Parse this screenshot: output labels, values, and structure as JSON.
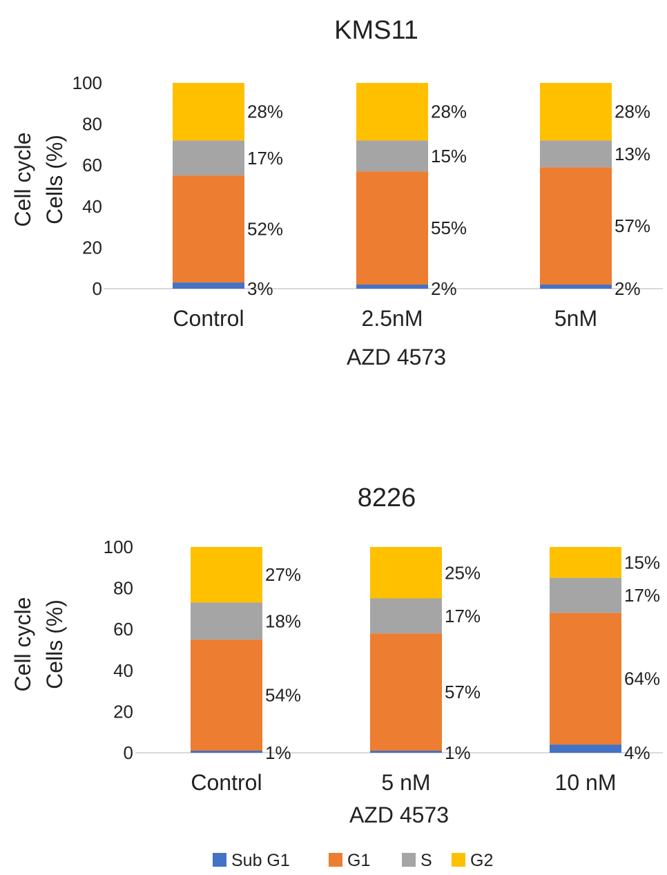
{
  "chart_data": [
    {
      "type": "bar",
      "stacked": true,
      "title": "KMS11",
      "ylabel": [
        "Cell cycle",
        "Cells (%)"
      ],
      "xlabel": "AZD 4573",
      "ylim": [
        0,
        100
      ],
      "yticks": [
        0,
        20,
        40,
        60,
        80,
        100
      ],
      "categories": [
        "Control",
        "2.5nM",
        "5nM"
      ],
      "series": [
        {
          "name": "Sub G1",
          "values": [
            3,
            2,
            2
          ],
          "labels": [
            "3%",
            "2%",
            "2%"
          ]
        },
        {
          "name": "G1",
          "values": [
            52,
            55,
            57
          ],
          "labels": [
            "52%",
            "55%",
            "57%"
          ]
        },
        {
          "name": "S",
          "values": [
            17,
            15,
            13
          ],
          "labels": [
            "17%",
            "15%",
            "13%"
          ]
        },
        {
          "name": "G2",
          "values": [
            28,
            28,
            28
          ],
          "labels": [
            "28%",
            "28%",
            "28%"
          ]
        }
      ]
    },
    {
      "type": "bar",
      "stacked": true,
      "title": "8226",
      "ylabel": [
        "Cell cycle",
        "Cells (%)"
      ],
      "xlabel": "AZD 4573",
      "ylim": [
        0,
        100
      ],
      "yticks": [
        0,
        20,
        40,
        60,
        80,
        100
      ],
      "categories": [
        "Control",
        "5 nM",
        "10 nM"
      ],
      "series": [
        {
          "name": "Sub G1",
          "values": [
            1,
            1,
            4
          ],
          "labels": [
            "1%",
            "1%",
            "4%"
          ]
        },
        {
          "name": "G1",
          "values": [
            54,
            57,
            64
          ],
          "labels": [
            "54%",
            "57%",
            "64%"
          ]
        },
        {
          "name": "S",
          "values": [
            18,
            17,
            17
          ],
          "labels": [
            "18%",
            "17%",
            "17%"
          ]
        },
        {
          "name": "G2",
          "values": [
            27,
            25,
            15
          ],
          "labels": [
            "27%",
            "25%",
            "15%"
          ]
        }
      ]
    }
  ],
  "legend": {
    "position": "bottom",
    "items": [
      {
        "name": "Sub G1",
        "color": "#4472c4"
      },
      {
        "name": "G1",
        "color": "#ed7d31"
      },
      {
        "name": "S",
        "color": "#a5a5a5"
      },
      {
        "name": "G2",
        "color": "#ffc000"
      }
    ]
  }
}
